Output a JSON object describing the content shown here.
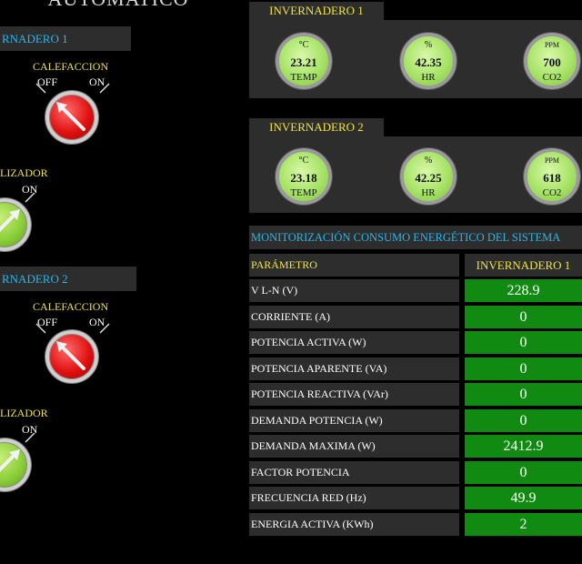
{
  "window": {
    "title_partial": "AUTOMATICO"
  },
  "controls": [
    {
      "header": "RNADERO 1",
      "switches": [
        {
          "label": "CALEFACCION",
          "off_label": "OFF",
          "on_label": "ON",
          "state": "off",
          "color": "#e01010"
        },
        {
          "label": "LIZADOR",
          "on_label": "ON",
          "state": "on",
          "color": "#8ccf3a"
        }
      ]
    },
    {
      "header": "RNADERO 2",
      "switches": [
        {
          "label": "CALEFACCION",
          "off_label": "OFF",
          "on_label": "ON",
          "state": "off",
          "color": "#e01010"
        },
        {
          "label": "LIZADOR",
          "on_label": "ON",
          "state": "on",
          "color": "#8ccf3a"
        }
      ]
    }
  ],
  "greenhouses": [
    {
      "title": "INVERNADERO 1",
      "gauges": [
        {
          "unit": "°C",
          "value": "23.21",
          "label": "TEMP"
        },
        {
          "unit": "%",
          "value": "42.35",
          "label": "HR"
        },
        {
          "unit": "PPM",
          "value": "700",
          "label": "CO2"
        }
      ]
    },
    {
      "title": "INVERNADERO 2",
      "gauges": [
        {
          "unit": "°C",
          "value": "23.18",
          "label": "TEMP"
        },
        {
          "unit": "%",
          "value": "42.25",
          "label": "HR"
        },
        {
          "unit": "PPM",
          "value": "618",
          "label": "CO2"
        }
      ]
    }
  ],
  "monitor": {
    "title": "MONITORIZACIÓN CONSUMO ENERGÉTICO DEL SISTEMA",
    "col_param": "PARÁMETRO",
    "col_value": "INVERNADERO 1",
    "rows": [
      {
        "param": "V L-N (V)",
        "value": "228.9"
      },
      {
        "param": "CORRIENTE (A)",
        "value": "0"
      },
      {
        "param": "POTENCIA ACTIVA (W)",
        "value": "0"
      },
      {
        "param": "POTENCIA APARENTE (VA)",
        "value": "0"
      },
      {
        "param": "POTENCIA REACTIVA (VAr)",
        "value": "0"
      },
      {
        "param": "DEMANDA POTENCIA (W)",
        "value": "0"
      },
      {
        "param": "DEMANDA MAXIMA (W)",
        "value": "2412.9"
      },
      {
        "param": "FACTOR POTENCIA",
        "value": "0"
      },
      {
        "param": "FRECUENCIA RED (Hz)",
        "value": "49.9"
      },
      {
        "param": "ENERGIA ACTIVA (KWh)",
        "value": "2"
      }
    ]
  },
  "colors": {
    "accent_blue": "#29b6e8",
    "accent_yellow": "#f0e53c",
    "value_green": "#118a11",
    "panel": "#2d2d2d"
  }
}
